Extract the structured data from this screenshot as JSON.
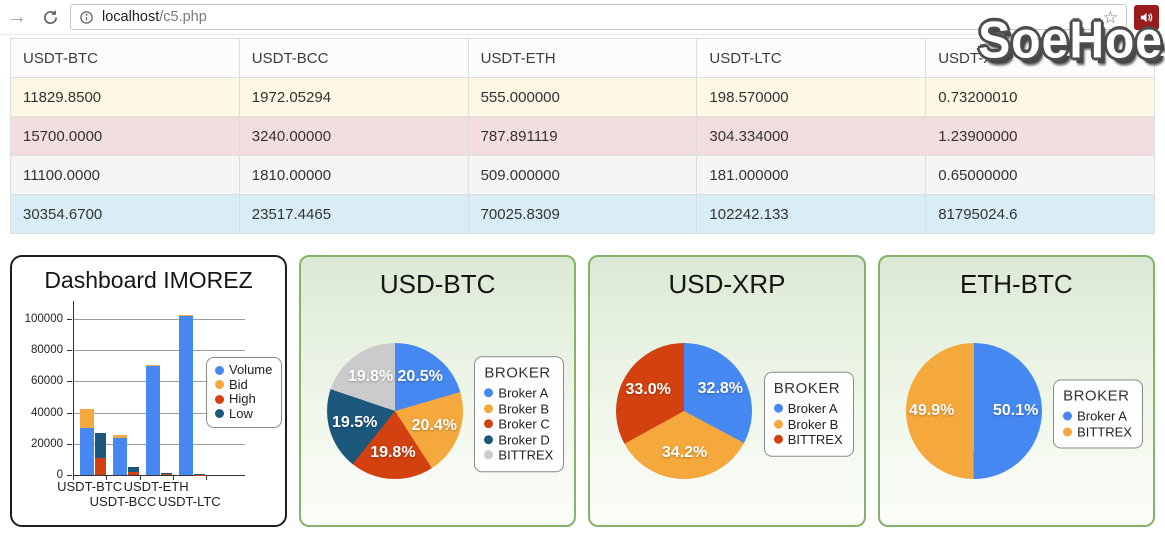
{
  "browser": {
    "url_host": "localhost",
    "url_path": "/c5.php",
    "icons": [
      "forward-arrow-icon",
      "reload-icon",
      "info-icon",
      "bookmark-star-icon",
      "speaker-icon"
    ]
  },
  "watermark": {
    "text": "SoeHoe"
  },
  "table": {
    "headers": [
      "USDT-BTC",
      "USDT-BCC",
      "USDT-ETH",
      "USDT-LTC",
      "USDT-XRP"
    ],
    "rows": [
      {
        "color": "#fcf8e3",
        "cells": [
          "11829.8500",
          "1972.05294",
          "555.000000",
          "198.570000",
          "0.73200010"
        ]
      },
      {
        "color": "#f2dede",
        "cells": [
          "15700.0000",
          "3240.00000",
          "787.891119",
          "304.334000",
          "1.23900000"
        ]
      },
      {
        "color": "#f5f5f5",
        "cells": [
          "11100.0000",
          "1810.00000",
          "509.000000",
          "181.000000",
          "0.65000000"
        ]
      },
      {
        "color": "#d9edf7",
        "cells": [
          "30354.6700",
          "23517.4465",
          "70025.8309",
          "102242.133",
          "81795024.6"
        ]
      }
    ]
  },
  "chart_data": [
    {
      "type": "bar",
      "title": "Dashboard IMOREZ",
      "categories": [
        "USDT-BTC",
        "USDT-BCC",
        "USDT-ETH",
        "USDT-LTC"
      ],
      "series": [
        {
          "name": "Volume",
          "color": "#4688F1",
          "stack": 0,
          "values": [
            30354.67,
            23517.4465,
            70025.8309,
            102242.133
          ]
        },
        {
          "name": "Bid",
          "color": "#F5A83C",
          "stack": 0,
          "values": [
            11829.85,
            1972.05294,
            555.0,
            198.57
          ]
        },
        {
          "name": "High",
          "color": "#D2410F",
          "stack": 1,
          "values": [
            11100.0,
            1810.0,
            509.0,
            181.0
          ]
        },
        {
          "name": "Low",
          "color": "#1B587C",
          "stack": 1,
          "values": [
            15700.0,
            3240.0,
            787.891119,
            304.334
          ]
        }
      ],
      "ylim": [
        0,
        110000
      ],
      "yticks": [
        0,
        20000,
        40000,
        60000,
        80000,
        100000
      ],
      "grid": true,
      "legend_position": "right"
    },
    {
      "type": "pie",
      "title": "USD-BTC",
      "legend_title": "BROKER",
      "legend_position": "right",
      "slices": [
        {
          "label": "Broker A",
          "pct": 20.5,
          "color": "#4688F1"
        },
        {
          "label": "Broker B",
          "pct": 20.4,
          "color": "#F5A83C"
        },
        {
          "label": "Broker C",
          "pct": 19.8,
          "color": "#D2410F"
        },
        {
          "label": "Broker D",
          "pct": 19.5,
          "color": "#1B587C"
        },
        {
          "label": "BITTREX",
          "pct": 19.8,
          "color": "#CBCBCB"
        }
      ]
    },
    {
      "type": "pie",
      "title": "USD-XRP",
      "legend_title": "BROKER",
      "legend_position": "right",
      "slices": [
        {
          "label": "Broker A",
          "pct": 32.8,
          "color": "#4688F1"
        },
        {
          "label": "Broker B",
          "pct": 34.2,
          "color": "#F5A83C"
        },
        {
          "label": "BITTREX",
          "pct": 33.0,
          "color": "#D2410F"
        }
      ]
    },
    {
      "type": "pie",
      "title": "ETH-BTC",
      "legend_title": "BROKER",
      "legend_position": "right",
      "slices": [
        {
          "label": "Broker A",
          "pct": 50.1,
          "color": "#4688F1"
        },
        {
          "label": "BITTREX",
          "pct": 49.9,
          "color": "#F5A83C"
        }
      ]
    }
  ]
}
